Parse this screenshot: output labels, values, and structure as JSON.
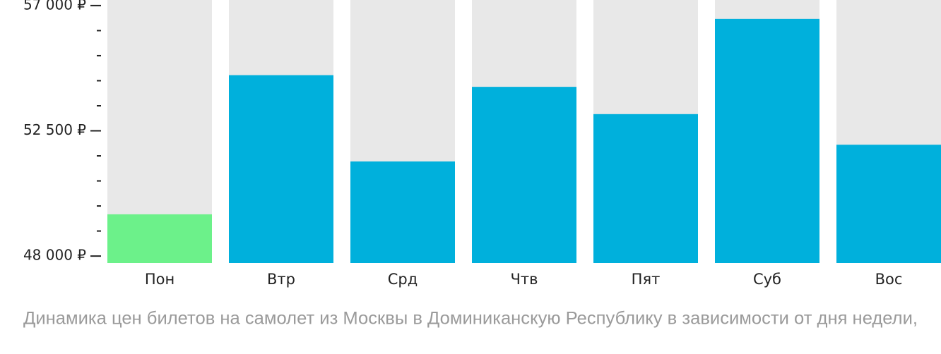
{
  "chart_data": {
    "type": "bar",
    "title": "Динамика цен билетов на самолет из Москвы в Доминиканскую Республику в зависимости от дня недели,",
    "categories": [
      "Пон",
      "Втр",
      "Срд",
      "Чтв",
      "Пят",
      "Суб",
      "Вос"
    ],
    "values": [
      49500,
      54500,
      51400,
      54080,
      53100,
      56520,
      52000
    ],
    "colors": [
      "#6cf18a",
      "#00b0dc",
      "#00b0dc",
      "#00b0dc",
      "#00b0dc",
      "#00b0dc",
      "#00b0dc"
    ],
    "background_color": "#e8e8e8",
    "ylim": [
      47750,
      57200
    ],
    "yticks": [
      {
        "value": 48000,
        "label": "48 000 ₽"
      },
      {
        "value": 52500,
        "label": "52 500 ₽"
      },
      {
        "value": 57000,
        "label": "57 000 ₽"
      }
    ],
    "minor_yticks": [
      48900,
      49800,
      50700,
      51600,
      53400,
      54300,
      55200,
      56100
    ]
  }
}
